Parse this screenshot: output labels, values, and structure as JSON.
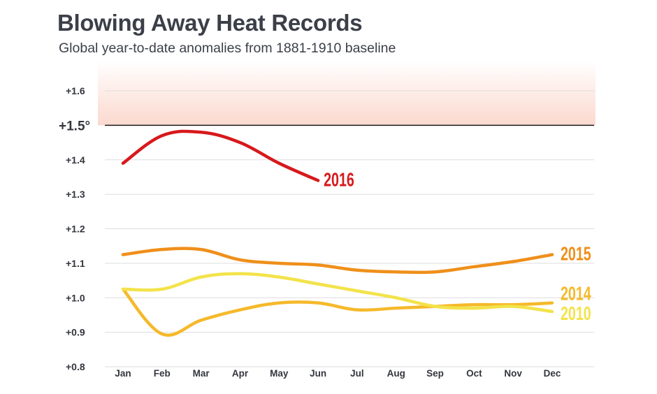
{
  "header": {
    "title": "Blowing Away Heat Records",
    "subtitle": "Global year-to-date anomalies from 1881-1910 baseline"
  },
  "colors": {
    "threshold_band": "#fbd9cf",
    "threshold_line": "#1a1a1a",
    "grid": "#dddddd"
  },
  "chart_data": {
    "type": "line",
    "title": "Blowing Away Heat Records",
    "subtitle": "Global year-to-date anomalies from 1881-1910 baseline",
    "xlabel": "",
    "ylabel": "",
    "categories": [
      "Jan",
      "Feb",
      "Mar",
      "Apr",
      "May",
      "Jun",
      "Jul",
      "Aug",
      "Sep",
      "Oct",
      "Nov",
      "Dec"
    ],
    "y_ticks": [
      "+0.8",
      "+0.9",
      "+1.0",
      "+1.1",
      "+1.2",
      "+1.3",
      "+1.4",
      "+1.5°",
      "+1.6"
    ],
    "ylim": [
      0.8,
      1.6
    ],
    "threshold": {
      "value": 1.5,
      "label": "+1.5°",
      "shaded_above": true
    },
    "grid": true,
    "legend": "direct labels at line ends",
    "series": [
      {
        "name": "2016",
        "color": "#d7191c",
        "values": [
          1.39,
          1.47,
          1.48,
          1.45,
          1.39,
          1.34,
          null,
          null,
          null,
          null,
          null,
          null
        ]
      },
      {
        "name": "2015",
        "color": "#ef8f1a",
        "values": [
          1.125,
          1.14,
          1.14,
          1.11,
          1.1,
          1.095,
          1.08,
          1.075,
          1.075,
          1.09,
          1.105,
          1.125
        ]
      },
      {
        "name": "2014",
        "color": "#f5b92a",
        "values": [
          1.025,
          0.895,
          0.935,
          0.965,
          0.985,
          0.985,
          0.965,
          0.97,
          0.975,
          0.98,
          0.98,
          0.985
        ]
      },
      {
        "name": "2010",
        "color": "#f3e34a",
        "values": [
          1.025,
          1.025,
          1.06,
          1.07,
          1.06,
          1.04,
          1.02,
          1.0,
          0.975,
          0.97,
          0.975,
          0.96
        ]
      }
    ]
  }
}
